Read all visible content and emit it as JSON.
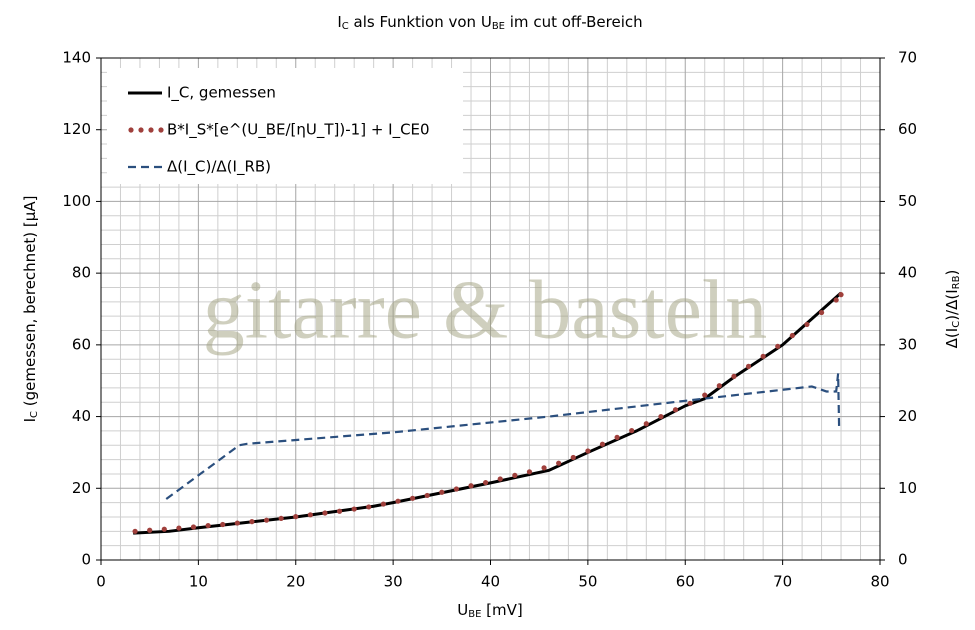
{
  "chart_data": {
    "type": "line",
    "title": [
      "I",
      "C",
      " als Funktion  von U",
      "BE",
      " im cut off-Bereich"
    ],
    "x_label": [
      "U",
      "BE",
      " [mV]"
    ],
    "y_label": [
      "I",
      "C",
      " (gemessen, berechnet) [µA]"
    ],
    "y2_label": [
      "Δ(I",
      "C",
      ")/Δ(I",
      "RB",
      ")"
    ],
    "watermark": "gitarre & basteln",
    "xlim": [
      0,
      80
    ],
    "xticks": [
      0,
      10,
      20,
      30,
      40,
      50,
      60,
      70,
      80
    ],
    "ylim": [
      0,
      140
    ],
    "yticks": [
      0,
      20,
      40,
      60,
      80,
      100,
      120,
      140
    ],
    "y2lim": [
      0,
      70
    ],
    "y2ticks": [
      0,
      10,
      20,
      30,
      40,
      50,
      60,
      70
    ],
    "grid": true,
    "legend": "upper left",
    "series": [
      {
        "name": "I_C, gemessen",
        "color": "#000000",
        "style": "solid",
        "x": [
          3.3,
          7,
          10,
          15,
          20,
          28,
          30,
          40,
          46,
          50,
          55,
          60,
          62,
          65,
          70,
          76
        ],
        "values": [
          7.5,
          8,
          9,
          10.5,
          12,
          15,
          16,
          21.5,
          25,
          30,
          36,
          43,
          45,
          51,
          60,
          74.5
        ]
      },
      {
        "name": "B*I_S*[e^(U_BE/[ηU_T])-1] + I_CE0",
        "color": "#a0403c",
        "style": "dotted",
        "x": [
          3.5,
          5,
          6.5,
          8,
          9.5,
          11,
          12.5,
          14,
          15.5,
          17,
          18.5,
          20,
          21.5,
          23,
          24.5,
          26,
          27.5,
          29,
          30.5,
          32,
          33.5,
          35,
          36.5,
          38,
          39.5,
          41,
          42.5,
          44,
          45.5,
          47,
          48.5,
          50,
          51.5,
          53,
          54.5,
          56,
          57.5,
          59,
          60.5,
          62,
          63.5,
          65,
          66.5,
          68,
          69.5,
          71,
          72.5,
          74,
          75.5,
          76
        ],
        "values": [
          8.0,
          8.3,
          8.6,
          8.9,
          9.2,
          9.6,
          9.9,
          10.3,
          10.7,
          11.1,
          11.6,
          12.1,
          12.6,
          13.1,
          13.6,
          14.2,
          14.8,
          15.6,
          16.4,
          17.2,
          18.0,
          18.9,
          19.8,
          20.7,
          21.6,
          22.6,
          23.6,
          24.6,
          25.7,
          27.0,
          28.6,
          30.4,
          32.3,
          34.2,
          36.1,
          38.0,
          40.0,
          41.9,
          43.7,
          46.0,
          48.6,
          51.2,
          54.0,
          56.8,
          59.6,
          62.6,
          65.7,
          69.0,
          72.5,
          74.0
        ]
      },
      {
        "name": "Δ(I_C)/Δ(I_RB)",
        "color": "#2b4f7e",
        "style": "dashed",
        "axis": "y2",
        "x": [
          6.7,
          14.2,
          15,
          30,
          46,
          60,
          73,
          74.5,
          75.5,
          75.7,
          75.8
        ],
        "values": [
          8.5,
          16,
          16.2,
          17.8,
          20,
          22.2,
          24.2,
          23.5,
          23.5,
          26,
          18.5
        ]
      }
    ]
  }
}
